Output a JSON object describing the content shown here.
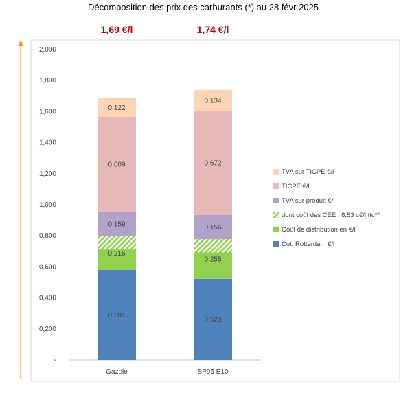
{
  "chart_data": {
    "type": "bar",
    "stacked": true,
    "title": "Décomposition des prix des carburants (*) au 28 févr 2025",
    "categories": [
      "Gazole",
      "SP95 E10"
    ],
    "totals": [
      "1,69 €/l",
      "1,74 €/l"
    ],
    "ylim": [
      0,
      2.0
    ],
    "yticks": [
      "-",
      "0,200",
      "0,400",
      "0,600",
      "0,800",
      "1,000",
      "1,200",
      "1,400",
      "1,600",
      "1,800",
      "2,000"
    ],
    "legend_position": "right",
    "series": [
      {
        "name": "Cot. Rotterdam €/l",
        "color": "#4f81bd",
        "values": [
          0.581,
          0.523
        ],
        "labels": [
          "0,581",
          "0,523"
        ]
      },
      {
        "name": "Coût de distribution en €/l",
        "color": "#92d050",
        "values": [
          0.216,
          0.255
        ],
        "labels": [
          "0,216",
          "0,255"
        ]
      },
      {
        "name": "dont coût des CEE : 8,53 c€/l ttc**",
        "color": "#92d050",
        "pattern": "hatch",
        "values": [
          0.0853,
          0.0853
        ],
        "overlay_within": "Coût de distribution en €/l"
      },
      {
        "name": "TVA sur produit €/l",
        "color": "#b3a2c7",
        "values": [
          0.159,
          0.156
        ],
        "labels": [
          "0,159",
          "0,156"
        ]
      },
      {
        "name": "TICPE €/l",
        "color": "#e6b9b8",
        "values": [
          0.609,
          0.672
        ],
        "labels": [
          "0,609",
          "0,672"
        ]
      },
      {
        "name": "TVA sur TICPE €/l",
        "color": "#fcd5b5",
        "values": [
          0.122,
          0.134
        ],
        "labels": [
          "0,122",
          "0,134"
        ]
      }
    ]
  }
}
